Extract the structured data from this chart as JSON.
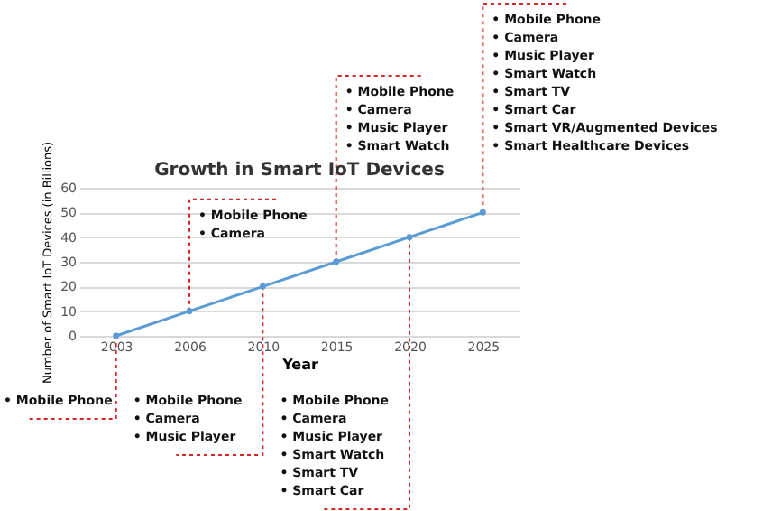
{
  "chart_data": {
    "type": "line",
    "title": "Growth in Smart IoT Devices",
    "xlabel": "Year",
    "ylabel": "Number of Smart IoT Devices (in Billions)",
    "categories": [
      "2003",
      "2006",
      "2010",
      "2015",
      "2020",
      "2025"
    ],
    "series": [
      {
        "color": "#5b9bd5",
        "values": [
          0,
          10,
          20,
          30,
          40,
          50
        ]
      }
    ],
    "ylim": [
      0,
      60
    ],
    "yticks": [
      0,
      10,
      20,
      30,
      40,
      50,
      60
    ],
    "grid": "y",
    "marker": "circle",
    "annotations": [
      {
        "text": "• Mobile Phone",
        "x": "2003",
        "y": 0
      },
      {
        "text": "• Mobile Phone\n• Camera",
        "x": "2006",
        "y": 10
      },
      {
        "text": "• Mobile Phone\n• Camera\n• Music Player",
        "x": "2010",
        "y": 20
      },
      {
        "text": "• Mobile Phone\n• Camera\n• Music Player\n• Smart Watch",
        "x": "2015",
        "y": 30
      },
      {
        "text": "• Mobile Phone\n• Camera\n• Music Player\n• Smart Watch\n• Smart TV\n• Smart Car",
        "x": "2020",
        "y": 40
      },
      {
        "text": "• Mobile Phone\n• Camera\n• Music Player\n• Smart Watch\n• Smart TV\n• Smart Car\n• Smart VR/Augmented Devices\n• Smart Healthcare Devices",
        "x": "2025",
        "y": 50
      }
    ]
  }
}
